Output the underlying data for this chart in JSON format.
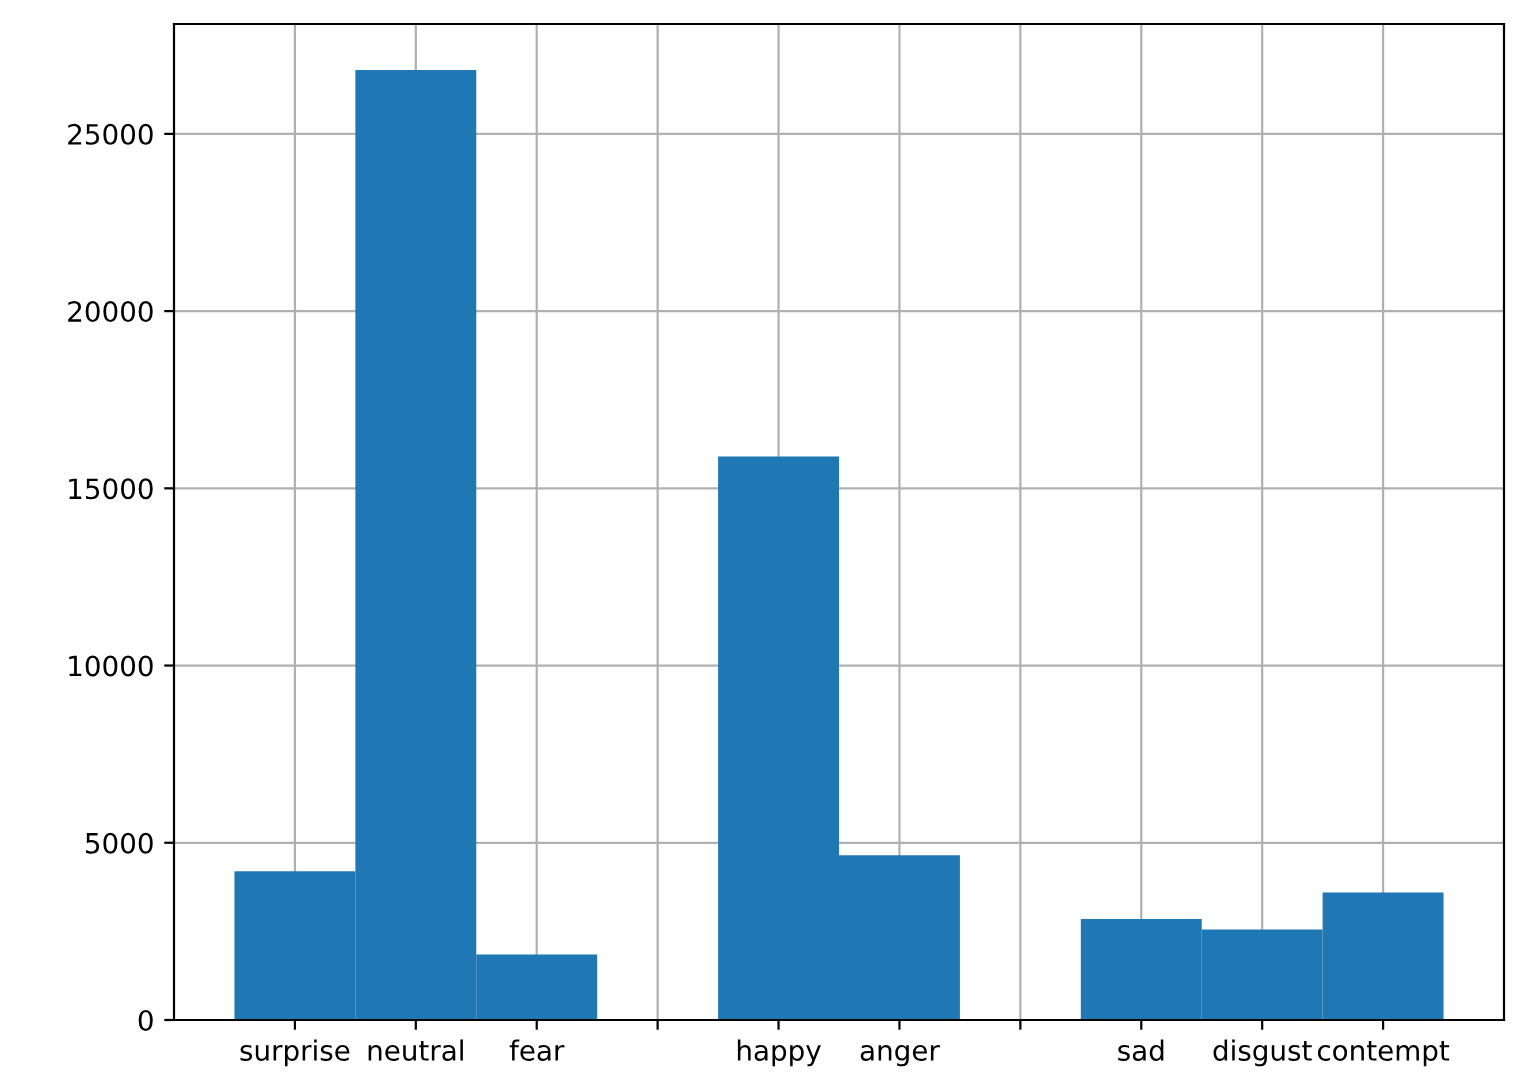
{
  "chart_data": {
    "type": "bar",
    "categories": [
      "surprise",
      "neutral",
      "fear",
      null,
      "happy",
      "anger",
      null,
      "sad",
      "disgust",
      "contempt"
    ],
    "values": [
      4200,
      26800,
      1850,
      0,
      15900,
      4650,
      0,
      2850,
      2550,
      3600
    ],
    "color": "#1f77b4",
    "ylim": [
      0,
      28100
    ],
    "yticks": [
      0,
      5000,
      10000,
      15000,
      20000,
      25000
    ],
    "grid": true
  }
}
